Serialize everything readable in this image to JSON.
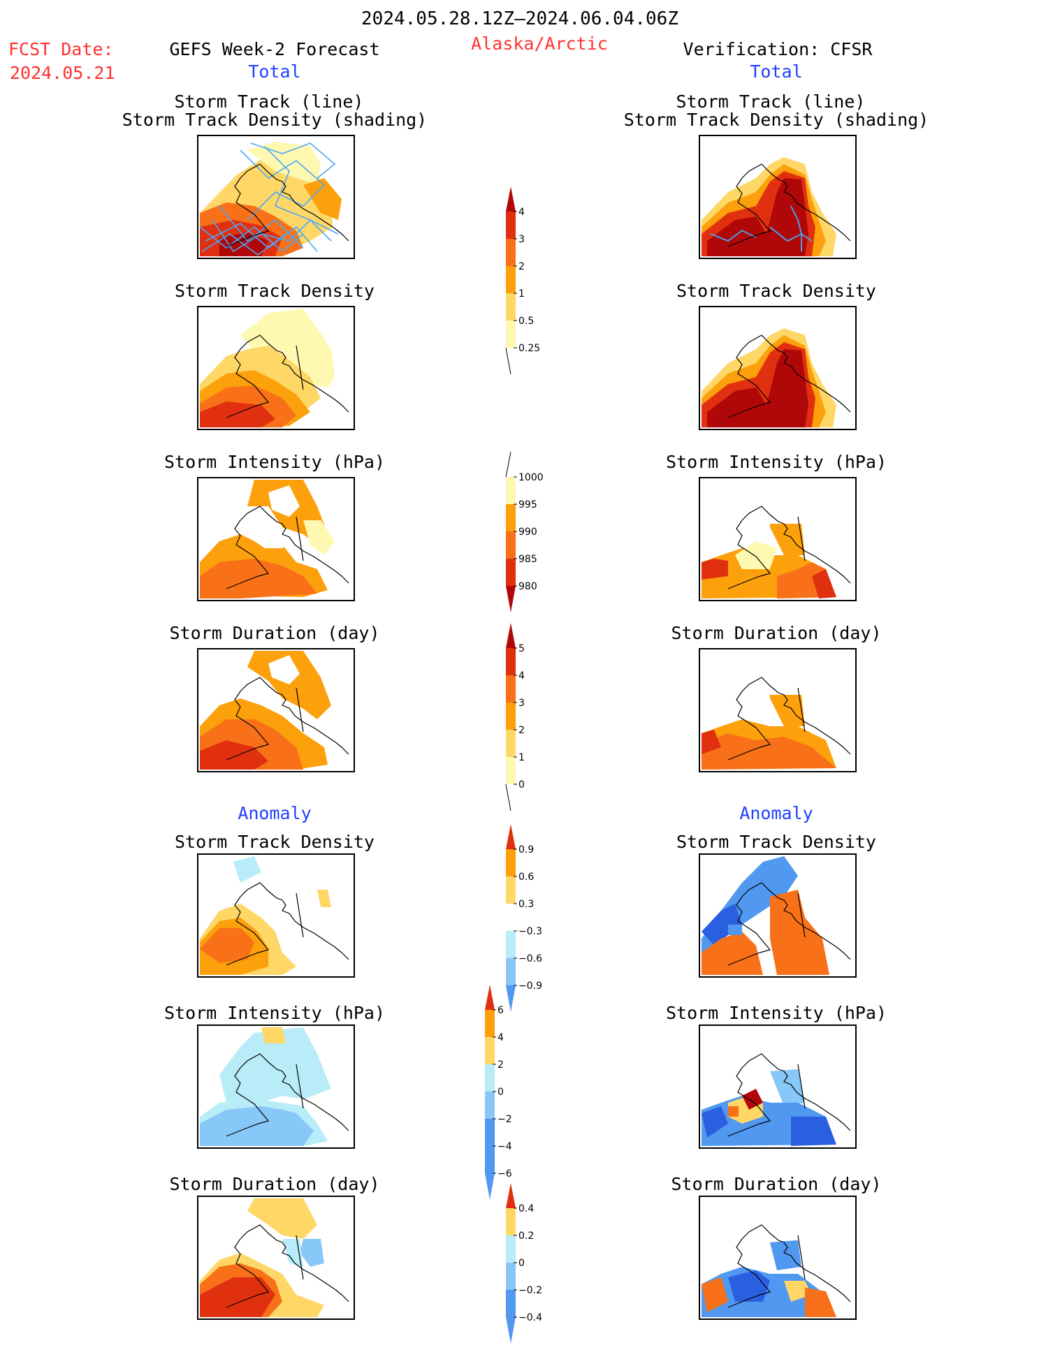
{
  "header": {
    "date_range": "2024.05.28.12Z–2024.06.04.06Z",
    "fcst_label": "FCST Date:",
    "fcst_date": "2024.05.21",
    "left_title": "GEFS Week-2 Forecast",
    "region": "Alaska/Arctic",
    "right_title": "Verification: CFSR",
    "total_left": "Total",
    "total_right": "Total",
    "anomaly_left": "Anomaly",
    "anomaly_right": "Anomaly"
  },
  "panels": {
    "track_line_1": "Storm Track (line)",
    "track_line_2": "Storm Track Density (shading)",
    "track_density": "Storm Track Density",
    "intensity": "Storm Intensity (hPa)",
    "duration": "Storm Duration (day)",
    "anom_density": "Storm Track Density",
    "anom_intensity": "Storm Intensity (hPa)",
    "anom_duration": "Storm Duration (day)"
  },
  "colors": {
    "c0": "#fff8b0",
    "c1": "#fed766",
    "c2": "#fca00c",
    "c3": "#f87018",
    "c4": "#e03010",
    "c5": "#b00808",
    "b1": "#b8ecf8",
    "b2": "#88c8f8",
    "b3": "#5098f0",
    "b4": "#2a60e0",
    "track": "#4aa8f8"
  },
  "chart_data": [
    {
      "type": "heatmap",
      "title": "Storm Track Density colorbar",
      "variant": "total",
      "ticks": [
        "4",
        "3",
        "2",
        "1",
        "0.5",
        "0.25"
      ]
    },
    {
      "type": "heatmap",
      "title": "Storm Intensity colorbar",
      "variant": "reverse",
      "ticks": [
        "1000",
        "995",
        "990",
        "985",
        "980"
      ]
    },
    {
      "type": "heatmap",
      "title": "Storm Duration colorbar",
      "variant": "total",
      "ticks": [
        "5",
        "4",
        "3",
        "2",
        "1",
        "0"
      ]
    },
    {
      "type": "heatmap",
      "title": "Track Density Anomaly colorbar",
      "variant": "anomaly",
      "ticks": [
        "0.9",
        "0.6",
        "0.3",
        "−0.3",
        "−0.6",
        "−0.9"
      ]
    },
    {
      "type": "heatmap",
      "title": "Intensity Anomaly colorbar",
      "variant": "anomaly",
      "ticks": [
        "6",
        "4",
        "2",
        "0",
        "−2",
        "−4",
        "−6"
      ]
    },
    {
      "type": "heatmap",
      "title": "Duration Anomaly colorbar",
      "variant": "anomaly",
      "ticks": [
        "0.4",
        "0.2",
        "0",
        "−0.2",
        "−0.4"
      ]
    }
  ]
}
